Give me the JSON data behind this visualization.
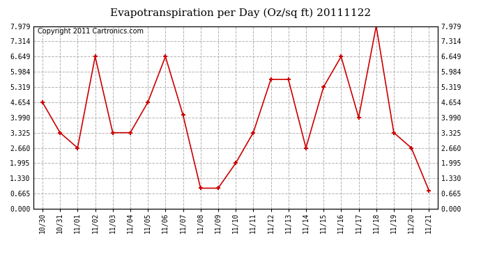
{
  "title": "Evapotranspiration per Day (Oz/sq ft) 20111122",
  "copyright": "Copyright 2011 Cartronics.com",
  "x_labels": [
    "10/30",
    "10/31",
    "11/01",
    "11/02",
    "11/03",
    "11/04",
    "11/05",
    "11/06",
    "11/07",
    "11/08",
    "11/09",
    "11/10",
    "11/11",
    "11/12",
    "11/13",
    "11/14",
    "11/15",
    "11/16",
    "11/17",
    "11/18",
    "11/19",
    "11/20",
    "11/21"
  ],
  "y_values": [
    4.654,
    3.325,
    2.66,
    6.649,
    3.325,
    3.325,
    4.654,
    6.649,
    4.1,
    0.9,
    0.9,
    1.995,
    3.325,
    5.65,
    5.65,
    2.66,
    5.319,
    6.649,
    3.99,
    7.979,
    3.325,
    2.66,
    0.8
  ],
  "line_color": "#cc0000",
  "marker_color": "#cc0000",
  "bg_color": "#ffffff",
  "plot_bg_color": "#ffffff",
  "grid_color": "#aaaaaa",
  "yticks": [
    0.0,
    0.665,
    1.33,
    1.995,
    2.66,
    3.325,
    3.99,
    4.654,
    5.319,
    5.984,
    6.649,
    7.314,
    7.979
  ],
  "ylim": [
    0.0,
    7.979
  ],
  "title_fontsize": 11,
  "copyright_fontsize": 7
}
